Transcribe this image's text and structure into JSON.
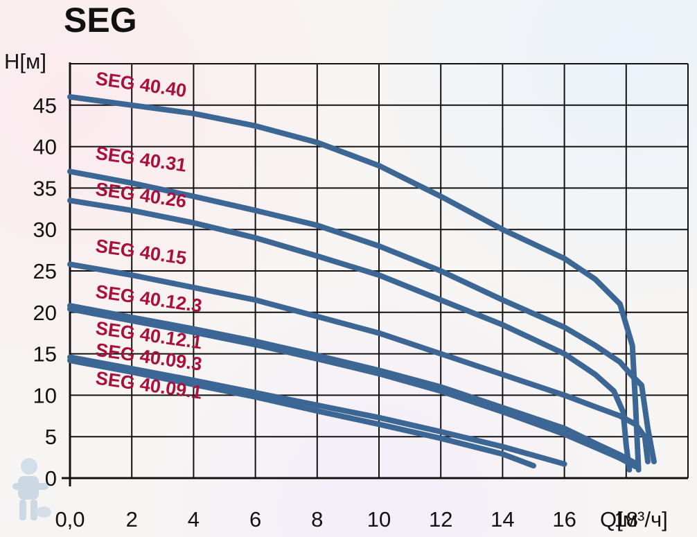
{
  "chart_data": {
    "type": "line",
    "title": "SEG",
    "xlabel": "Q[м³/ч]",
    "ylabel": "H[м]",
    "xlim": [
      0,
      20
    ],
    "ylim": [
      0,
      50
    ],
    "x_ticks": [
      0,
      2,
      4,
      6,
      8,
      10,
      12,
      14,
      16,
      18
    ],
    "x_tick_labels": [
      "0,0",
      "2",
      "4",
      "6",
      "8",
      "10",
      "12",
      "14",
      "16",
      "18"
    ],
    "y_ticks": [
      0,
      5,
      10,
      15,
      20,
      25,
      30,
      35,
      40,
      45
    ],
    "y_tick_labels": [
      "0",
      "5",
      "10",
      "15",
      "20",
      "25",
      "30",
      "35",
      "40",
      "45"
    ],
    "grid": true,
    "series_color": "#3c6794",
    "label_color": "#a8113f",
    "series": [
      {
        "name": "SEG 40.40",
        "x": [
          0,
          2,
          4,
          6,
          8,
          10,
          12,
          14,
          16,
          17,
          17.8,
          18.2,
          18.3,
          18.4
        ],
        "y": [
          46,
          45,
          44,
          42.5,
          40.5,
          37.7,
          34,
          30,
          26.5,
          24,
          21,
          16,
          9,
          1
        ]
      },
      {
        "name": "SEG 40.31",
        "x": [
          0,
          2,
          4,
          6,
          8,
          10,
          12,
          14,
          16,
          17,
          17.8,
          18.2,
          18.5,
          18.7,
          18.9
        ],
        "y": [
          37,
          35.6,
          34,
          32.3,
          30.5,
          28,
          25,
          21.5,
          18.2,
          16,
          14,
          12.3,
          11.2,
          6,
          2
        ]
      },
      {
        "name": "SEG 40.26",
        "x": [
          0,
          2,
          4,
          6,
          8,
          10,
          12,
          14,
          16,
          17,
          17.6,
          17.9,
          18.0,
          18.1
        ],
        "y": [
          33.5,
          32.3,
          30.8,
          29,
          26.8,
          24.5,
          21.5,
          18.5,
          15,
          12.5,
          10.5,
          8,
          4,
          1
        ]
      },
      {
        "name": "SEG 40.15",
        "x": [
          0,
          2,
          4,
          6,
          8,
          10,
          12,
          14,
          16,
          17,
          17.8,
          18.3,
          18.6,
          18.7
        ],
        "y": [
          25.8,
          24.5,
          23,
          21.5,
          19.5,
          17.5,
          15,
          12.5,
          10,
          8.6,
          7.5,
          6.5,
          5,
          2
        ]
      },
      {
        "name": "SEG 40.12.3",
        "x": [
          0,
          2,
          4,
          6,
          8,
          10,
          12,
          14,
          16,
          17,
          17.8,
          18.3
        ],
        "y": [
          20.8,
          19.4,
          18,
          16.5,
          14.8,
          13,
          11,
          8.5,
          6,
          4.2,
          2.8,
          1.8
        ]
      },
      {
        "name": "SEG 40.12.1",
        "x": [
          0,
          2,
          4,
          6,
          8,
          10,
          12,
          14,
          16,
          17,
          17.8,
          18.3
        ],
        "y": [
          20.4,
          19,
          17.6,
          16.1,
          14.4,
          12.6,
          10.5,
          8,
          5.3,
          3.7,
          2.4,
          1.4
        ]
      },
      {
        "name": "SEG 40.09.3",
        "x": [
          0,
          2,
          4,
          6,
          8,
          10,
          12,
          14,
          16
        ],
        "y": [
          14.6,
          13.2,
          11.8,
          10.3,
          8.8,
          7.3,
          5.6,
          3.8,
          1.7
        ]
      },
      {
        "name": "SEG 40.09.1",
        "x": [
          0,
          2,
          4,
          6,
          8,
          10,
          12,
          14,
          15
        ],
        "y": [
          14.2,
          12.8,
          11.3,
          9.8,
          8.1,
          6.5,
          4.8,
          2.9,
          1.5
        ]
      }
    ]
  }
}
